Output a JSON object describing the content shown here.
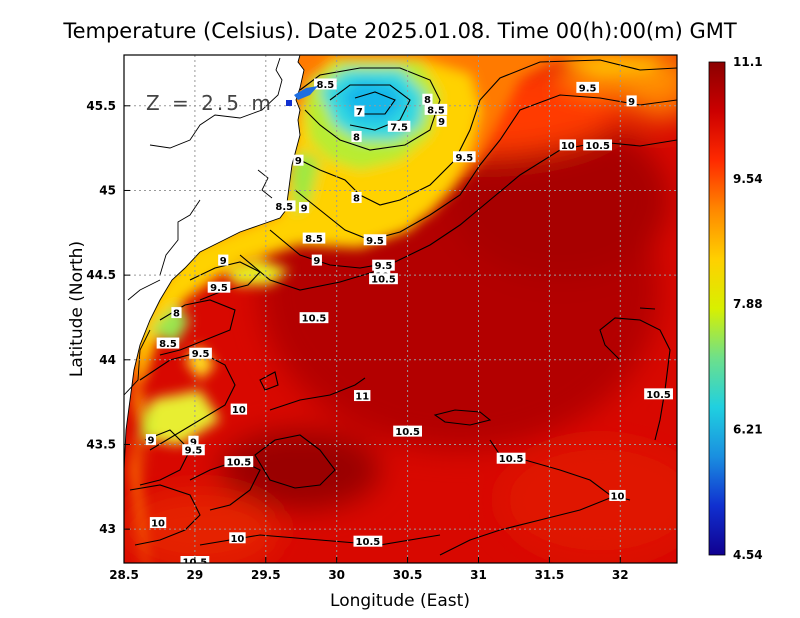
{
  "title": "Temperature (Celsius). Date 2025.01.08. Time 00(h):00(m) GMT",
  "depth_label": "Z = 2.5 m",
  "x_axis": {
    "label": "Longitude (East)",
    "range": [
      28.5,
      32.4
    ],
    "ticks": [
      "28.5",
      "29",
      "29.5",
      "30",
      "30.5",
      "31",
      "31.5",
      "32"
    ]
  },
  "y_axis": {
    "label": "Latitude (North)",
    "range": [
      42.8,
      45.8
    ],
    "ticks": [
      "43",
      "43.5",
      "44",
      "44.5",
      "45",
      "45.5"
    ]
  },
  "colorbar": {
    "min": 4.54,
    "max": 11.1,
    "ticks": [
      "11.1",
      "9.54",
      "7.88",
      "6.21",
      "4.54"
    ],
    "colors": [
      "#8b0000",
      "#cc0000",
      "#ff2a00",
      "#ff8800",
      "#ffd000",
      "#d8f000",
      "#6ee08a",
      "#20d0e0",
      "#1a8fe0",
      "#1030d0",
      "#100090"
    ]
  },
  "contour_labels": [
    {
      "text": "8.5",
      "lon": 29.92,
      "lat": 45.62
    },
    {
      "text": "7",
      "lon": 30.16,
      "lat": 45.46
    },
    {
      "text": "8",
      "lon": 30.64,
      "lat": 45.53
    },
    {
      "text": "8.5",
      "lon": 30.7,
      "lat": 45.47
    },
    {
      "text": "9",
      "lon": 30.74,
      "lat": 45.4
    },
    {
      "text": "7.5",
      "lon": 30.44,
      "lat": 45.37
    },
    {
      "text": "9.5",
      "lon": 31.77,
      "lat": 45.6
    },
    {
      "text": "9",
      "lon": 32.08,
      "lat": 45.52
    },
    {
      "text": "8",
      "lon": 30.14,
      "lat": 45.31
    },
    {
      "text": "9",
      "lon": 29.73,
      "lat": 45.17
    },
    {
      "text": "10",
      "lon": 31.63,
      "lat": 45.26
    },
    {
      "text": "10.5",
      "lon": 31.84,
      "lat": 45.26
    },
    {
      "text": "9.5",
      "lon": 30.9,
      "lat": 45.19
    },
    {
      "text": "8",
      "lon": 30.14,
      "lat": 44.95
    },
    {
      "text": "8.5",
      "lon": 29.63,
      "lat": 44.9
    },
    {
      "text": "9",
      "lon": 29.77,
      "lat": 44.89
    },
    {
      "text": "8.5",
      "lon": 29.84,
      "lat": 44.71
    },
    {
      "text": "9.5",
      "lon": 30.27,
      "lat": 44.7
    },
    {
      "text": "9",
      "lon": 29.2,
      "lat": 44.58
    },
    {
      "text": "9",
      "lon": 29.86,
      "lat": 44.58
    },
    {
      "text": "9.5",
      "lon": 30.33,
      "lat": 44.55
    },
    {
      "text": "10",
      "lon": 30.32,
      "lat": 44.49
    },
    {
      "text": "10.5",
      "lon": 30.33,
      "lat": 44.47
    },
    {
      "text": "9.5",
      "lon": 29.17,
      "lat": 44.42
    },
    {
      "text": "8",
      "lon": 28.87,
      "lat": 44.27
    },
    {
      "text": "10.5",
      "lon": 29.84,
      "lat": 44.24
    },
    {
      "text": "8.5",
      "lon": 28.81,
      "lat": 44.09
    },
    {
      "text": "9.5",
      "lon": 29.04,
      "lat": 44.03
    },
    {
      "text": "11",
      "lon": 30.18,
      "lat": 43.78
    },
    {
      "text": "10.5",
      "lon": 32.27,
      "lat": 43.79
    },
    {
      "text": "10",
      "lon": 29.31,
      "lat": 43.7
    },
    {
      "text": "10.5",
      "lon": 30.5,
      "lat": 43.57
    },
    {
      "text": "9",
      "lon": 28.69,
      "lat": 43.52
    },
    {
      "text": "9",
      "lon": 28.99,
      "lat": 43.51
    },
    {
      "text": "9.5",
      "lon": 28.99,
      "lat": 43.46
    },
    {
      "text": "10.5",
      "lon": 29.31,
      "lat": 43.39
    },
    {
      "text": "10.5",
      "lon": 31.23,
      "lat": 43.41
    },
    {
      "text": "10",
      "lon": 31.98,
      "lat": 43.19
    },
    {
      "text": "10",
      "lon": 28.74,
      "lat": 43.03
    },
    {
      "text": "10",
      "lon": 29.3,
      "lat": 42.94
    },
    {
      "text": "10.5",
      "lon": 30.22,
      "lat": 42.92
    },
    {
      "text": "10.5",
      "lon": 29.0,
      "lat": 42.8
    }
  ]
}
